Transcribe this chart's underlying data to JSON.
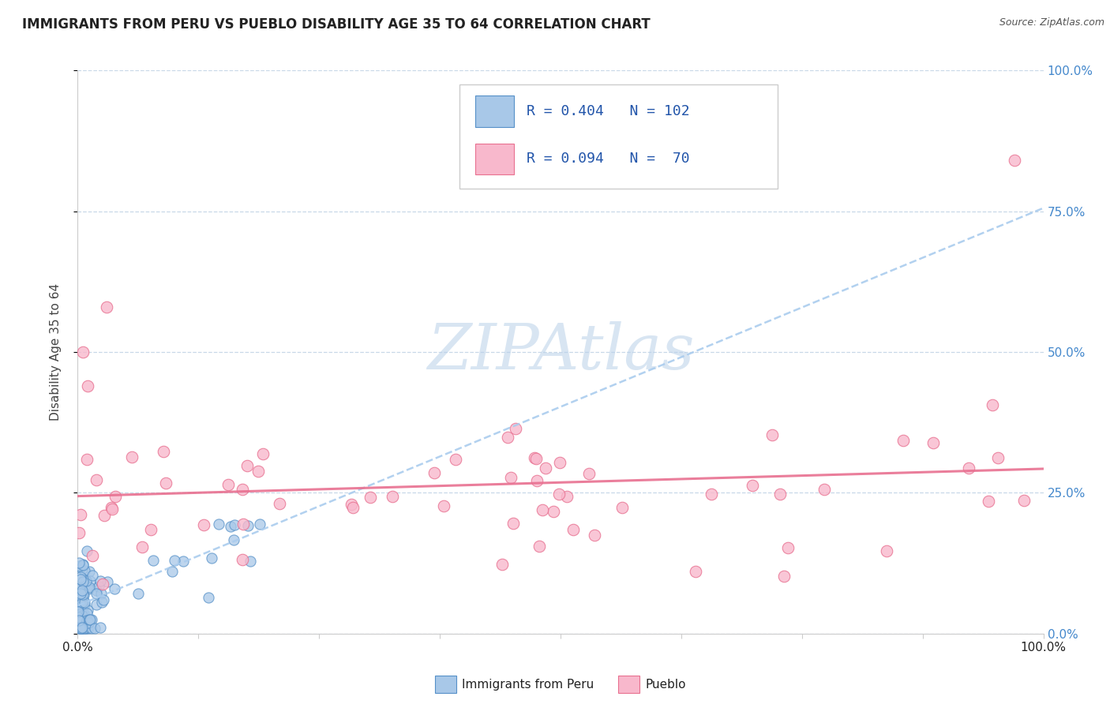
{
  "title": "IMMIGRANTS FROM PERU VS PUEBLO DISABILITY AGE 35 TO 64 CORRELATION CHART",
  "source": "Source: ZipAtlas.com",
  "ylabel": "Disability Age 35 to 64",
  "yticks": [
    "0.0%",
    "25.0%",
    "50.0%",
    "75.0%",
    "100.0%"
  ],
  "ytick_vals": [
    0.0,
    0.25,
    0.5,
    0.75,
    1.0
  ],
  "series1_color": "#a8c8e8",
  "series1_edge": "#5590c8",
  "series2_color": "#f8b8cc",
  "series2_edge": "#e87090",
  "trend1_color": "#aaccee",
  "trend2_color": "#e87090",
  "watermark": "ZIPAtlas",
  "background_color": "#ffffff",
  "grid_color": "#c8d8e8",
  "title_color": "#222222",
  "source_color": "#555555",
  "ytick_color": "#4488cc",
  "xtick_color": "#222222",
  "legend_text_color": "#2255aa",
  "legend_rn_color": "#111111"
}
